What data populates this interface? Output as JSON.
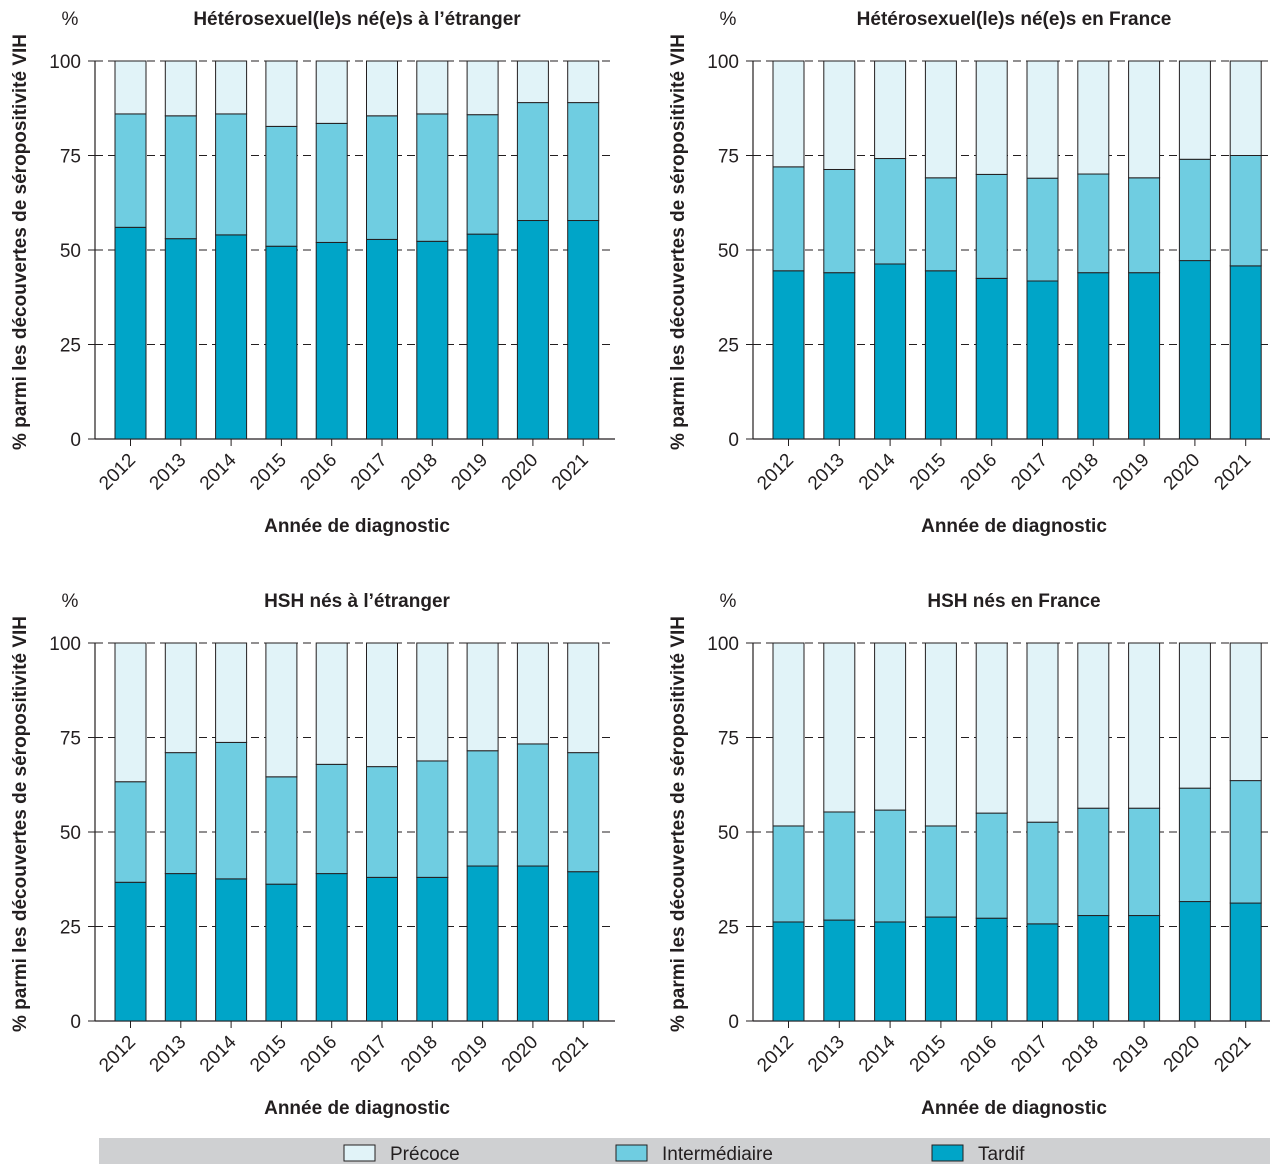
{
  "chart_data": [
    {
      "type": "bar",
      "stacked": true,
      "title": "Hétérosexuel(le)s né(e)s à l’étranger",
      "unit_label": "%",
      "xlabel": "Année de diagnostic",
      "ylabel": "% parmi les découvertes de séropositivité VIH",
      "ylim": [
        0,
        100
      ],
      "yticks": [
        "0",
        "25",
        "50",
        "75",
        "100"
      ],
      "categories": [
        "2012",
        "2013",
        "2014",
        "2015",
        "2016",
        "2017",
        "2018",
        "2019",
        "2020",
        "2021"
      ],
      "series": [
        {
          "name": "Tardif",
          "values": [
            56,
            53,
            54,
            51,
            52,
            52.8,
            52.3,
            54.2,
            57.8,
            57.8
          ]
        },
        {
          "name": "Intermédiaire",
          "values": [
            30,
            32.5,
            32,
            31.7,
            31.5,
            32.7,
            33.7,
            31.6,
            31.2,
            31.2
          ]
        },
        {
          "name": "Précoce",
          "values": [
            14,
            14.5,
            14,
            17.3,
            16.5,
            14.5,
            14,
            14.2,
            11,
            11
          ]
        }
      ]
    },
    {
      "type": "bar",
      "stacked": true,
      "title": "Hétérosexuel(le)s né(e)s en France",
      "unit_label": "%",
      "xlabel": "Année de diagnostic",
      "ylabel": "% parmi les découvertes de séropositivité VIH",
      "ylim": [
        0,
        100
      ],
      "yticks": [
        "0",
        "25",
        "50",
        "75",
        "100"
      ],
      "categories": [
        "2012",
        "2013",
        "2014",
        "2015",
        "2016",
        "2017",
        "2018",
        "2019",
        "2020",
        "2021"
      ],
      "series": [
        {
          "name": "Tardif",
          "values": [
            44.5,
            44,
            46.3,
            44.5,
            42.5,
            41.8,
            44,
            44,
            47.2,
            45.8
          ]
        },
        {
          "name": "Intermédiaire",
          "values": [
            27.5,
            27.3,
            27.9,
            24.6,
            27.5,
            27.2,
            26.1,
            25.1,
            26.8,
            29.2
          ]
        },
        {
          "name": "Précoce",
          "values": [
            28,
            28.7,
            25.8,
            30.9,
            30,
            31,
            29.9,
            30.9,
            26,
            25
          ]
        }
      ]
    },
    {
      "type": "bar",
      "stacked": true,
      "title": "HSH nés à l’étranger",
      "unit_label": "%",
      "xlabel": "Année de diagnostic",
      "ylabel": "% parmi les découvertes de séropositivité VIH",
      "ylim": [
        0,
        100
      ],
      "yticks": [
        "0",
        "25",
        "50",
        "75",
        "100"
      ],
      "categories": [
        "2012",
        "2013",
        "2014",
        "2015",
        "2016",
        "2017",
        "2018",
        "2019",
        "2020",
        "2021"
      ],
      "series": [
        {
          "name": "Tardif",
          "values": [
            36.7,
            39,
            37.6,
            36.2,
            39,
            38,
            38,
            41,
            41,
            39.5
          ]
        },
        {
          "name": "Intermédiaire",
          "values": [
            26.6,
            32,
            36.1,
            28.4,
            28.9,
            29.3,
            30.8,
            30.5,
            32.3,
            31.5
          ]
        },
        {
          "name": "Précoce",
          "values": [
            36.7,
            29,
            26.3,
            35.4,
            32.1,
            32.7,
            31.2,
            28.5,
            26.7,
            29
          ]
        }
      ]
    },
    {
      "type": "bar",
      "stacked": true,
      "title": "HSH nés en France",
      "unit_label": "%",
      "xlabel": "Année de diagnostic",
      "ylabel": "% parmi les découvertes de séropositivité VIH",
      "ylim": [
        0,
        100
      ],
      "yticks": [
        "0",
        "25",
        "50",
        "75",
        "100"
      ],
      "categories": [
        "2012",
        "2013",
        "2014",
        "2015",
        "2016",
        "2017",
        "2018",
        "2019",
        "2020",
        "2021"
      ],
      "series": [
        {
          "name": "Tardif",
          "values": [
            26.2,
            26.7,
            26.2,
            27.5,
            27.2,
            25.7,
            27.9,
            27.9,
            31.6,
            31.2
          ]
        },
        {
          "name": "Intermédiaire",
          "values": [
            25.4,
            28.6,
            29.6,
            24.1,
            27.8,
            26.9,
            28.4,
            28.4,
            30,
            32.4
          ]
        },
        {
          "name": "Précoce",
          "values": [
            48.4,
            44.7,
            44.2,
            48.4,
            45,
            47.4,
            43.7,
            43.7,
            38.4,
            36.4
          ]
        }
      ]
    }
  ],
  "legend": {
    "items": [
      {
        "label": "Précoce",
        "color": "#e1f3f8"
      },
      {
        "label": "Intermédiaire",
        "color": "#6fcde1"
      },
      {
        "label": "Tardif",
        "color": "#00a5c8"
      }
    ],
    "background": "#cfd0d2"
  },
  "colors": {
    "Tardif": "#00a5c8",
    "Intermédiaire": "#6fcde1",
    "Précoce": "#e1f3f8"
  }
}
